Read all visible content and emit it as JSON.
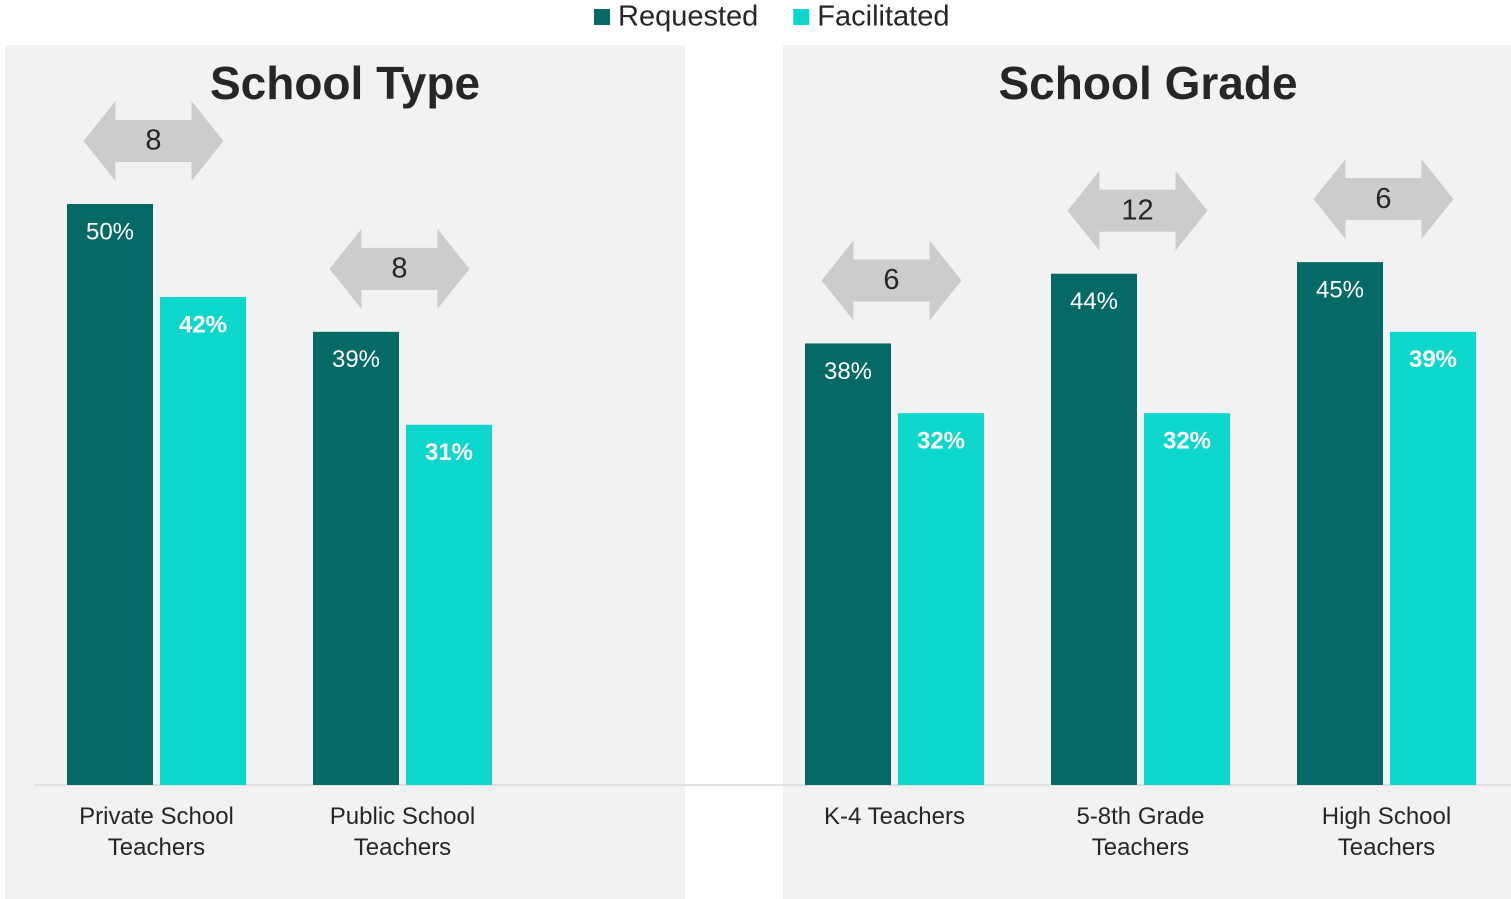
{
  "chart_data": [
    {
      "type": "bar",
      "title": "School Type",
      "categories": [
        "Private School Teachers",
        "Public School Teachers"
      ],
      "series": [
        {
          "name": "Requested",
          "color": "#056a65",
          "values": [
            50,
            39
          ],
          "value_labels": [
            "50%",
            "39%"
          ]
        },
        {
          "name": "Facilitated",
          "color": "#0dd6cc",
          "values": [
            42,
            31
          ],
          "value_labels": [
            "42%",
            "31%"
          ]
        }
      ],
      "differences": [
        8,
        8
      ],
      "ylim": [
        0,
        50
      ]
    },
    {
      "type": "bar",
      "title": "School Grade",
      "categories": [
        "K-4 Teachers",
        "5-8th Grade Teachers",
        "High School Teachers"
      ],
      "series": [
        {
          "color": "#056a65",
          "values": [
            38,
            44,
            45
          ],
          "value_labels": [
            "38%",
            "44%",
            "45%"
          ]
        },
        {
          "color": "#0dd6cc",
          "values": [
            32,
            32,
            39
          ],
          "value_labels": [
            "32%",
            "32%",
            "39%"
          ]
        }
      ],
      "differences": [
        6,
        12,
        6
      ],
      "ylim": [
        0,
        50
      ]
    }
  ]
}
